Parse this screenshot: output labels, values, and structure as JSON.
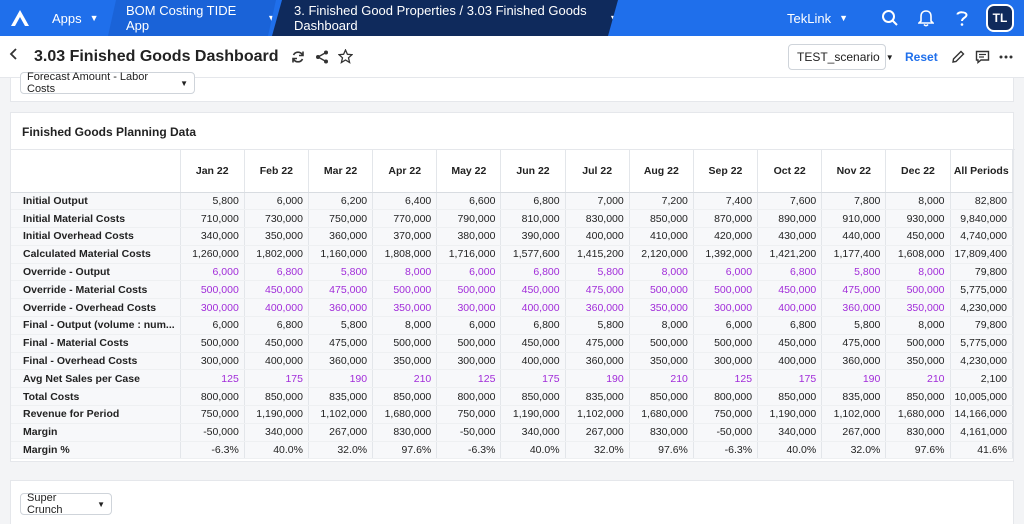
{
  "topbar": {
    "apps_label": "Apps",
    "app_label": "BOM Costing TIDE App",
    "current_label": "3. Finished Good Properties / 3.03 Finished Goods Dashboard",
    "tenant_label": "TekLink",
    "avatar_initials": "TL",
    "brand_color": "#1f6feb"
  },
  "page": {
    "title": "3.03 Finished Goods Dashboard",
    "scenario": "TEST_scenario",
    "reset_label": "Reset"
  },
  "filters": {
    "top_dropdown": "Forecast Amount - Labor Costs",
    "bottom_dropdown": "Super Crunch"
  },
  "table": {
    "title": "Finished Goods Planning Data",
    "columns": [
      "Jan 22",
      "Feb 22",
      "Mar 22",
      "Apr 22",
      "May 22",
      "Jun 22",
      "Jul 22",
      "Aug 22",
      "Sep 22",
      "Oct 22",
      "Nov 22",
      "Dec 22",
      "All Periods"
    ],
    "rows": [
      {
        "label": "Initial Output",
        "style": "normal",
        "values": [
          "5,800",
          "6,000",
          "6,200",
          "6,400",
          "6,600",
          "6,800",
          "7,000",
          "7,200",
          "7,400",
          "7,600",
          "7,800",
          "8,000",
          "82,800"
        ]
      },
      {
        "label": "Initial Material Costs",
        "style": "normal",
        "values": [
          "710,000",
          "730,000",
          "750,000",
          "770,000",
          "790,000",
          "810,000",
          "830,000",
          "850,000",
          "870,000",
          "890,000",
          "910,000",
          "930,000",
          "9,840,000"
        ]
      },
      {
        "label": "Initial Overhead Costs",
        "style": "normal",
        "values": [
          "340,000",
          "350,000",
          "360,000",
          "370,000",
          "380,000",
          "390,000",
          "400,000",
          "410,000",
          "420,000",
          "430,000",
          "440,000",
          "450,000",
          "4,740,000"
        ]
      },
      {
        "label": "Calculated Material Costs",
        "style": "normal",
        "values": [
          "1,260,000",
          "1,802,000",
          "1,160,000",
          "1,808,000",
          "1,716,000",
          "1,577,600",
          "1,415,200",
          "2,120,000",
          "1,392,000",
          "1,421,200",
          "1,177,400",
          "1,608,000",
          "17,809,400"
        ]
      },
      {
        "label": "Override - Output",
        "style": "purple",
        "values": [
          "6,000",
          "6,800",
          "5,800",
          "8,000",
          "6,000",
          "6,800",
          "5,800",
          "8,000",
          "6,000",
          "6,800",
          "5,800",
          "8,000",
          "79,800"
        ]
      },
      {
        "label": "Override - Material Costs",
        "style": "purple",
        "values": [
          "500,000",
          "450,000",
          "475,000",
          "500,000",
          "500,000",
          "450,000",
          "475,000",
          "500,000",
          "500,000",
          "450,000",
          "475,000",
          "500,000",
          "5,775,000"
        ]
      },
      {
        "label": "Override - Overhead Costs",
        "style": "purple",
        "values": [
          "300,000",
          "400,000",
          "360,000",
          "350,000",
          "300,000",
          "400,000",
          "360,000",
          "350,000",
          "300,000",
          "400,000",
          "360,000",
          "350,000",
          "4,230,000"
        ]
      },
      {
        "label": "Final - Output (volume : num...",
        "style": "normal",
        "values": [
          "6,000",
          "6,800",
          "5,800",
          "8,000",
          "6,000",
          "6,800",
          "5,800",
          "8,000",
          "6,000",
          "6,800",
          "5,800",
          "8,000",
          "79,800"
        ]
      },
      {
        "label": "Final - Material Costs",
        "style": "normal",
        "values": [
          "500,000",
          "450,000",
          "475,000",
          "500,000",
          "500,000",
          "450,000",
          "475,000",
          "500,000",
          "500,000",
          "450,000",
          "475,000",
          "500,000",
          "5,775,000"
        ]
      },
      {
        "label": "Final - Overhead Costs",
        "style": "normal",
        "values": [
          "300,000",
          "400,000",
          "360,000",
          "350,000",
          "300,000",
          "400,000",
          "360,000",
          "350,000",
          "300,000",
          "400,000",
          "360,000",
          "350,000",
          "4,230,000"
        ]
      },
      {
        "label": "Avg Net Sales per Case",
        "style": "purple",
        "values": [
          "125",
          "175",
          "190",
          "210",
          "125",
          "175",
          "190",
          "210",
          "125",
          "175",
          "190",
          "210",
          "2,100"
        ]
      },
      {
        "label": "Total Costs",
        "style": "normal",
        "values": [
          "800,000",
          "850,000",
          "835,000",
          "850,000",
          "800,000",
          "850,000",
          "835,000",
          "850,000",
          "800,000",
          "850,000",
          "835,000",
          "850,000",
          "10,005,000"
        ]
      },
      {
        "label": "Revenue for Period",
        "style": "normal",
        "values": [
          "750,000",
          "1,190,000",
          "1,102,000",
          "1,680,000",
          "750,000",
          "1,190,000",
          "1,102,000",
          "1,680,000",
          "750,000",
          "1,190,000",
          "1,102,000",
          "1,680,000",
          "14,166,000"
        ]
      },
      {
        "label": "Margin",
        "style": "normal",
        "values": [
          "-50,000",
          "340,000",
          "267,000",
          "830,000",
          "-50,000",
          "340,000",
          "267,000",
          "830,000",
          "-50,000",
          "340,000",
          "267,000",
          "830,000",
          "4,161,000"
        ]
      },
      {
        "label": "Margin %",
        "style": "normal",
        "values": [
          "-6.3%",
          "40.0%",
          "32.0%",
          "97.6%",
          "-6.3%",
          "40.0%",
          "32.0%",
          "97.6%",
          "-6.3%",
          "40.0%",
          "32.0%",
          "97.6%",
          "41.6%"
        ]
      }
    ],
    "override_color": "#a12cd9"
  }
}
